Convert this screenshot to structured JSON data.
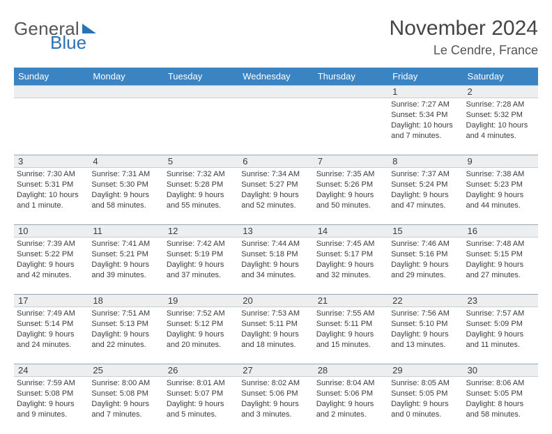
{
  "brand": {
    "part1": "General",
    "part2": "Blue"
  },
  "header": {
    "month_year": "November 2024",
    "location": "Le Cendre, France"
  },
  "colors": {
    "header_bg": "#3b84c4",
    "band_bg": "#eceef0",
    "rule": "#9aa8b4"
  },
  "weekdays": [
    "Sunday",
    "Monday",
    "Tuesday",
    "Wednesday",
    "Thursday",
    "Friday",
    "Saturday"
  ],
  "weeks": [
    {
      "nums": [
        "",
        "",
        "",
        "",
        "",
        "1",
        "2"
      ],
      "cells": [
        null,
        null,
        null,
        null,
        null,
        {
          "sr": "Sunrise: 7:27 AM",
          "ss": "Sunset: 5:34 PM",
          "dl": "Daylight: 10 hours and 7 minutes."
        },
        {
          "sr": "Sunrise: 7:28 AM",
          "ss": "Sunset: 5:32 PM",
          "dl": "Daylight: 10 hours and 4 minutes."
        }
      ]
    },
    {
      "nums": [
        "3",
        "4",
        "5",
        "6",
        "7",
        "8",
        "9"
      ],
      "cells": [
        {
          "sr": "Sunrise: 7:30 AM",
          "ss": "Sunset: 5:31 PM",
          "dl": "Daylight: 10 hours and 1 minute."
        },
        {
          "sr": "Sunrise: 7:31 AM",
          "ss": "Sunset: 5:30 PM",
          "dl": "Daylight: 9 hours and 58 minutes."
        },
        {
          "sr": "Sunrise: 7:32 AM",
          "ss": "Sunset: 5:28 PM",
          "dl": "Daylight: 9 hours and 55 minutes."
        },
        {
          "sr": "Sunrise: 7:34 AM",
          "ss": "Sunset: 5:27 PM",
          "dl": "Daylight: 9 hours and 52 minutes."
        },
        {
          "sr": "Sunrise: 7:35 AM",
          "ss": "Sunset: 5:26 PM",
          "dl": "Daylight: 9 hours and 50 minutes."
        },
        {
          "sr": "Sunrise: 7:37 AM",
          "ss": "Sunset: 5:24 PM",
          "dl": "Daylight: 9 hours and 47 minutes."
        },
        {
          "sr": "Sunrise: 7:38 AM",
          "ss": "Sunset: 5:23 PM",
          "dl": "Daylight: 9 hours and 44 minutes."
        }
      ]
    },
    {
      "nums": [
        "10",
        "11",
        "12",
        "13",
        "14",
        "15",
        "16"
      ],
      "cells": [
        {
          "sr": "Sunrise: 7:39 AM",
          "ss": "Sunset: 5:22 PM",
          "dl": "Daylight: 9 hours and 42 minutes."
        },
        {
          "sr": "Sunrise: 7:41 AM",
          "ss": "Sunset: 5:21 PM",
          "dl": "Daylight: 9 hours and 39 minutes."
        },
        {
          "sr": "Sunrise: 7:42 AM",
          "ss": "Sunset: 5:19 PM",
          "dl": "Daylight: 9 hours and 37 minutes."
        },
        {
          "sr": "Sunrise: 7:44 AM",
          "ss": "Sunset: 5:18 PM",
          "dl": "Daylight: 9 hours and 34 minutes."
        },
        {
          "sr": "Sunrise: 7:45 AM",
          "ss": "Sunset: 5:17 PM",
          "dl": "Daylight: 9 hours and 32 minutes."
        },
        {
          "sr": "Sunrise: 7:46 AM",
          "ss": "Sunset: 5:16 PM",
          "dl": "Daylight: 9 hours and 29 minutes."
        },
        {
          "sr": "Sunrise: 7:48 AM",
          "ss": "Sunset: 5:15 PM",
          "dl": "Daylight: 9 hours and 27 minutes."
        }
      ]
    },
    {
      "nums": [
        "17",
        "18",
        "19",
        "20",
        "21",
        "22",
        "23"
      ],
      "cells": [
        {
          "sr": "Sunrise: 7:49 AM",
          "ss": "Sunset: 5:14 PM",
          "dl": "Daylight: 9 hours and 24 minutes."
        },
        {
          "sr": "Sunrise: 7:51 AM",
          "ss": "Sunset: 5:13 PM",
          "dl": "Daylight: 9 hours and 22 minutes."
        },
        {
          "sr": "Sunrise: 7:52 AM",
          "ss": "Sunset: 5:12 PM",
          "dl": "Daylight: 9 hours and 20 minutes."
        },
        {
          "sr": "Sunrise: 7:53 AM",
          "ss": "Sunset: 5:11 PM",
          "dl": "Daylight: 9 hours and 18 minutes."
        },
        {
          "sr": "Sunrise: 7:55 AM",
          "ss": "Sunset: 5:11 PM",
          "dl": "Daylight: 9 hours and 15 minutes."
        },
        {
          "sr": "Sunrise: 7:56 AM",
          "ss": "Sunset: 5:10 PM",
          "dl": "Daylight: 9 hours and 13 minutes."
        },
        {
          "sr": "Sunrise: 7:57 AM",
          "ss": "Sunset: 5:09 PM",
          "dl": "Daylight: 9 hours and 11 minutes."
        }
      ]
    },
    {
      "nums": [
        "24",
        "25",
        "26",
        "27",
        "28",
        "29",
        "30"
      ],
      "cells": [
        {
          "sr": "Sunrise: 7:59 AM",
          "ss": "Sunset: 5:08 PM",
          "dl": "Daylight: 9 hours and 9 minutes."
        },
        {
          "sr": "Sunrise: 8:00 AM",
          "ss": "Sunset: 5:08 PM",
          "dl": "Daylight: 9 hours and 7 minutes."
        },
        {
          "sr": "Sunrise: 8:01 AM",
          "ss": "Sunset: 5:07 PM",
          "dl": "Daylight: 9 hours and 5 minutes."
        },
        {
          "sr": "Sunrise: 8:02 AM",
          "ss": "Sunset: 5:06 PM",
          "dl": "Daylight: 9 hours and 3 minutes."
        },
        {
          "sr": "Sunrise: 8:04 AM",
          "ss": "Sunset: 5:06 PM",
          "dl": "Daylight: 9 hours and 2 minutes."
        },
        {
          "sr": "Sunrise: 8:05 AM",
          "ss": "Sunset: 5:05 PM",
          "dl": "Daylight: 9 hours and 0 minutes."
        },
        {
          "sr": "Sunrise: 8:06 AM",
          "ss": "Sunset: 5:05 PM",
          "dl": "Daylight: 8 hours and 58 minutes."
        }
      ]
    }
  ]
}
